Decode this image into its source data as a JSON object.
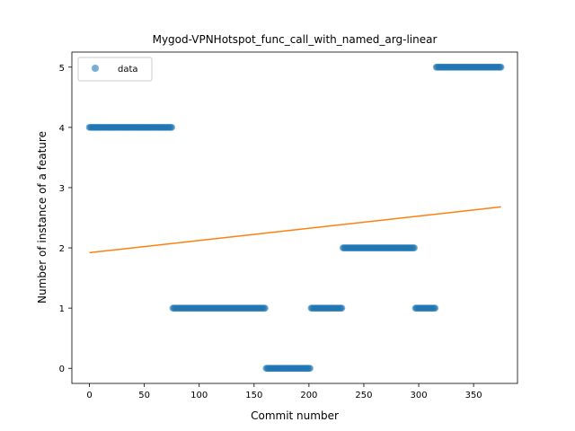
{
  "chart_data": {
    "type": "scatter",
    "title": "Mygod-VPNHotspot_func_call_with_named_arg-linear",
    "xlabel": "Commit number",
    "ylabel": "Number of instance of a feature",
    "xlim": [
      -16,
      390
    ],
    "ylim": [
      -0.25,
      5.25
    ],
    "xticks": [
      0,
      50,
      100,
      150,
      200,
      250,
      300,
      350
    ],
    "yticks": [
      0,
      1,
      2,
      3,
      4,
      5
    ],
    "legend": {
      "position": "top-left",
      "label": "data"
    },
    "grid": false,
    "colors": {
      "points": "#1f77b4",
      "fit_line": "#ff7f0e"
    },
    "series": [
      {
        "name": "data",
        "kind": "scatter",
        "segments": [
          {
            "x_start": 0,
            "x_end": 75,
            "y": 4
          },
          {
            "x_start": 76,
            "x_end": 160,
            "y": 1
          },
          {
            "x_start": 161,
            "x_end": 201,
            "y": 0
          },
          {
            "x_start": 202,
            "x_end": 230,
            "y": 1
          },
          {
            "x_start": 231,
            "x_end": 296,
            "y": 2
          },
          {
            "x_start": 297,
            "x_end": 315,
            "y": 1
          },
          {
            "x_start": 316,
            "x_end": 375,
            "y": 5
          }
        ]
      },
      {
        "kind": "line",
        "x": [
          0,
          375
        ],
        "y": [
          1.92,
          2.68
        ]
      }
    ]
  }
}
